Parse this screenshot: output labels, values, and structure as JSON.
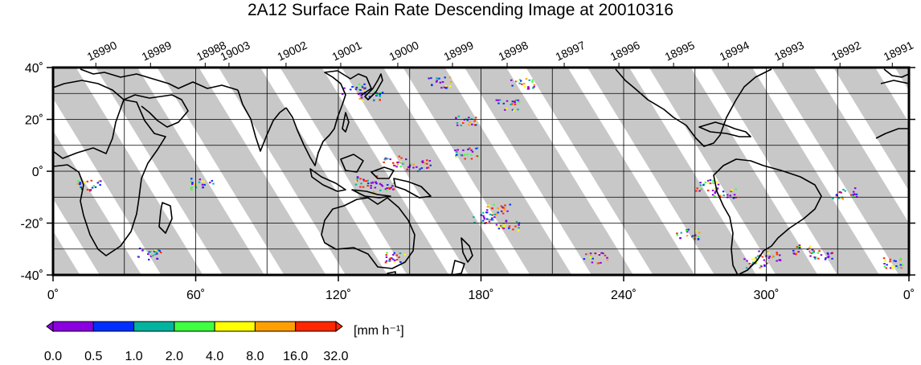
{
  "title": "2A12 Surface Rain Rate Descending Image at 20010316",
  "map": {
    "lon_range": [
      0,
      360
    ],
    "lat_range": [
      -40,
      40
    ],
    "lon_ticks": [
      {
        "value": 0,
        "label": "0˚"
      },
      {
        "value": 60,
        "label": "60˚"
      },
      {
        "value": 120,
        "label": "120˚"
      },
      {
        "value": 180,
        "label": "180˚"
      },
      {
        "value": 240,
        "label": "240˚"
      },
      {
        "value": 300,
        "label": "300˚"
      },
      {
        "value": 360,
        "label": "0˚"
      }
    ],
    "lat_ticks": [
      {
        "value": 40,
        "label": "40˚"
      },
      {
        "value": 20,
        "label": "20˚"
      },
      {
        "value": 0,
        "label": "0˚"
      },
      {
        "value": -20,
        "label": "-20˚"
      },
      {
        "value": -40,
        "label": "-40˚"
      }
    ],
    "grid_lon_step": 30,
    "grid_lat_step": 10,
    "swath_color": "#c8c8c8",
    "coast_color": "#000000"
  },
  "orbits": [
    {
      "number": "18990",
      "lon": 18
    },
    {
      "number": "18989",
      "lon": 41
    },
    {
      "number": "18988",
      "lon": 64
    },
    {
      "number": "19003",
      "lon": 74
    },
    {
      "number": "19002",
      "lon": 98
    },
    {
      "number": "19001",
      "lon": 121
    },
    {
      "number": "19000",
      "lon": 145
    },
    {
      "number": "18999",
      "lon": 168
    },
    {
      "number": "18998",
      "lon": 191
    },
    {
      "number": "18997",
      "lon": 215
    },
    {
      "number": "18996",
      "lon": 238
    },
    {
      "number": "18995",
      "lon": 261
    },
    {
      "number": "18994",
      "lon": 284
    },
    {
      "number": "18993",
      "lon": 307
    },
    {
      "number": "18992",
      "lon": 331
    },
    {
      "number": "18991",
      "lon": 353
    }
  ],
  "colorbar": {
    "unit_label": "[mm h⁻¹]",
    "ticks": [
      "0.0",
      "0.5",
      "1.0",
      "2.0",
      "4.0",
      "8.0",
      "16.0",
      "32.0"
    ],
    "colors": [
      "#8b00e0",
      "#0030ff",
      "#00b4a0",
      "#40ff40",
      "#ffff00",
      "#ffa000",
      "#ff2800"
    ]
  }
}
